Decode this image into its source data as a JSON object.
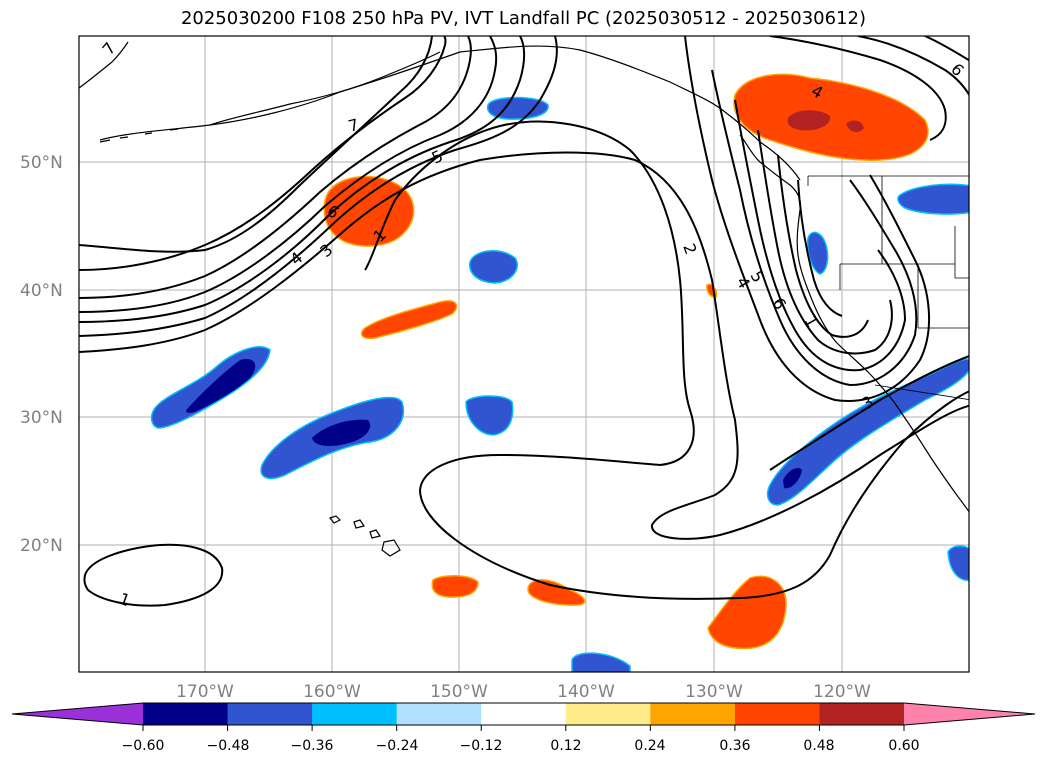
{
  "title": "2025030200 F108 250 hPa PV, IVT Landfall PC (2025030512 - 2025030612)",
  "latitude_labels": [
    "50°N",
    "40°N",
    "30°N",
    "20°N"
  ],
  "longitude_labels": [
    "170°W",
    "160°W",
    "150°W",
    "140°W",
    "130°W",
    "120°W"
  ],
  "contour_labels": [
    "1",
    "2",
    "3",
    "4",
    "5",
    "6",
    "7"
  ],
  "colorbar": {
    "colors": [
      "#9b30d8",
      "#00008b",
      "#3155d0",
      "#00bfff",
      "#b0e2ff",
      "#ffffff",
      "#ffec8b",
      "#ffa500",
      "#ff4500",
      "#b22222",
      "#ff82ab"
    ],
    "tick_labels": [
      "−0.60",
      "−0.48",
      "−0.36",
      "−0.24",
      "−0.12",
      "0.12",
      "0.24",
      "0.36",
      "0.48",
      "0.60"
    ]
  }
}
